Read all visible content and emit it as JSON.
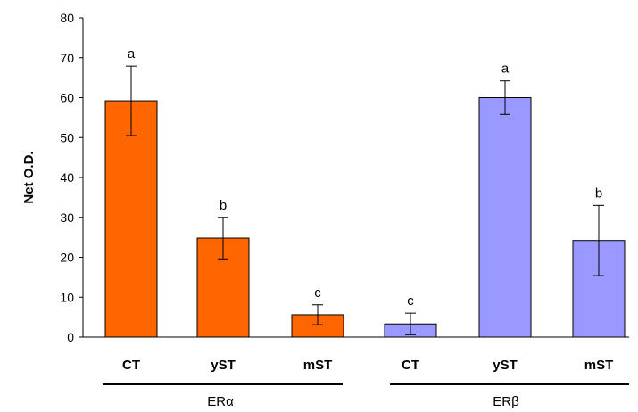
{
  "chart_data": {
    "type": "bar",
    "ylabel": "Net O.D.",
    "xlabel": "",
    "ylim": [
      0,
      80
    ],
    "yticks": [
      0,
      10,
      20,
      30,
      40,
      50,
      60,
      70,
      80
    ],
    "grid": false,
    "groups": [
      {
        "name": "ERα",
        "color": "#FF6600",
        "categories": [
          "CT",
          "yST",
          "mST"
        ],
        "values": [
          59.2,
          24.8,
          5.6
        ],
        "errors": [
          8.7,
          5.2,
          2.5
        ],
        "significance": [
          "a",
          "b",
          "c"
        ]
      },
      {
        "name": "ERβ",
        "color": "#9999FF",
        "categories": [
          "CT",
          "yST",
          "mST"
        ],
        "values": [
          3.3,
          60.0,
          24.2
        ],
        "errors": [
          2.7,
          4.2,
          8.8
        ],
        "significance": [
          "c",
          "a",
          "b"
        ]
      }
    ]
  }
}
